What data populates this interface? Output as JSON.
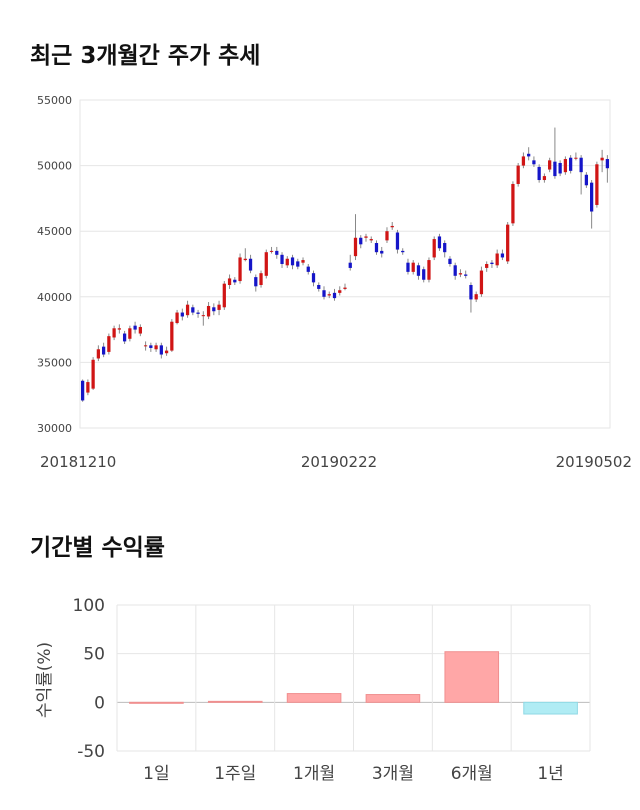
{
  "sections": {
    "price_title": "최근 3개월간 주가 추세",
    "return_title": "기간별 수익률"
  },
  "chart_data": [
    {
      "type": "candlestick",
      "title": "최근 3개월간 주가 추세",
      "ylim": [
        30000,
        55000
      ],
      "y_ticks": [
        "55000",
        "50000",
        "45000",
        "40000",
        "35000",
        "30000"
      ],
      "x_tick_labels": [
        "20181210",
        "20190222",
        "20190502"
      ],
      "colors": {
        "up": "#d01515",
        "down": "#1515c8",
        "wick": "#888888",
        "grid": "#e6e6e6"
      },
      "candles": [
        [
          33600,
          32100,
          33700,
          32000
        ],
        [
          32700,
          33500,
          33700,
          32500
        ],
        [
          33000,
          35200,
          35400,
          32900
        ],
        [
          35300,
          36000,
          36300,
          35100
        ],
        [
          36200,
          35600,
          36500,
          35400
        ],
        [
          35800,
          37000,
          37200,
          35600
        ],
        [
          36900,
          37600,
          37800,
          36700
        ],
        [
          37500,
          37600,
          37900,
          37200
        ],
        [
          37200,
          36600,
          37400,
          36400
        ],
        [
          36800,
          37600,
          37800,
          36600
        ],
        [
          37800,
          37500,
          38100,
          37200
        ],
        [
          37200,
          37700,
          37900,
          37000
        ],
        [
          36300,
          36300,
          36600,
          35900
        ],
        [
          36300,
          36100,
          36500,
          35800
        ],
        [
          36000,
          36300,
          36500,
          35800
        ],
        [
          36300,
          35600,
          36500,
          35300
        ],
        [
          35700,
          35900,
          36200,
          35500
        ],
        [
          35900,
          38100,
          38300,
          35800
        ],
        [
          38000,
          38800,
          39000,
          37900
        ],
        [
          38800,
          38500,
          39100,
          38200
        ],
        [
          38600,
          39400,
          39700,
          38400
        ],
        [
          39200,
          38800,
          39400,
          38600
        ],
        [
          38800,
          38700,
          39000,
          38400
        ],
        [
          38600,
          38600,
          38900,
          37800
        ],
        [
          38500,
          39300,
          39600,
          38300
        ],
        [
          39200,
          38900,
          39500,
          38600
        ],
        [
          39000,
          39400,
          39700,
          38600
        ],
        [
          39200,
          41000,
          41200,
          39000
        ],
        [
          40900,
          41400,
          41700,
          40600
        ],
        [
          41300,
          41100,
          41500,
          40900
        ],
        [
          41200,
          43000,
          43300,
          41000
        ],
        [
          42800,
          42900,
          43700,
          42700
        ],
        [
          42900,
          42000,
          43200,
          41800
        ],
        [
          41500,
          40800,
          41700,
          40400
        ],
        [
          40900,
          41800,
          42000,
          40700
        ],
        [
          41600,
          43400,
          43600,
          41400
        ],
        [
          43500,
          43500,
          43800,
          43300
        ],
        [
          43500,
          43200,
          43800,
          42900
        ],
        [
          43200,
          42500,
          43400,
          42200
        ],
        [
          42400,
          42900,
          43100,
          42200
        ],
        [
          43000,
          42400,
          43200,
          42100
        ],
        [
          42700,
          42300,
          42900,
          42100
        ],
        [
          42600,
          42800,
          43000,
          42400
        ],
        [
          42300,
          41900,
          42500,
          41700
        ],
        [
          41800,
          41100,
          42000,
          40800
        ],
        [
          40900,
          40600,
          41100,
          40400
        ],
        [
          40500,
          40000,
          40800,
          39800
        ],
        [
          40100,
          40200,
          40400,
          39900
        ],
        [
          40300,
          39900,
          40600,
          39700
        ],
        [
          40300,
          40500,
          40800,
          40100
        ],
        [
          40600,
          40700,
          41000,
          40500
        ],
        [
          42600,
          42200,
          43200,
          42000
        ],
        [
          43100,
          44500,
          46300,
          42800
        ],
        [
          44500,
          44000,
          44700,
          43700
        ],
        [
          44500,
          44600,
          44800,
          44200
        ],
        [
          44300,
          44400,
          44600,
          44100
        ],
        [
          44100,
          43400,
          44300,
          43200
        ],
        [
          43500,
          43300,
          43800,
          43000
        ],
        [
          44300,
          45000,
          45300,
          44100
        ],
        [
          45300,
          45400,
          45700,
          45100
        ],
        [
          44900,
          43600,
          45100,
          43300
        ],
        [
          43500,
          43400,
          43700,
          43200
        ],
        [
          42600,
          41900,
          42900,
          41700
        ],
        [
          41900,
          42600,
          42800,
          41700
        ],
        [
          42400,
          41600,
          42600,
          41300
        ],
        [
          42100,
          41300,
          42300,
          41100
        ],
        [
          41300,
          42800,
          43000,
          41100
        ],
        [
          43000,
          44400,
          44600,
          42800
        ],
        [
          44600,
          43700,
          44800,
          43500
        ],
        [
          44100,
          43400,
          44300,
          43000
        ],
        [
          42900,
          42500,
          43100,
          42300
        ],
        [
          42400,
          41600,
          42600,
          41300
        ],
        [
          41700,
          41800,
          42100,
          41500
        ],
        [
          41700,
          41600,
          42000,
          41400
        ],
        [
          40900,
          39800,
          41100,
          38800
        ],
        [
          39800,
          40200,
          40400,
          39600
        ],
        [
          40200,
          42000,
          42300,
          40000
        ],
        [
          42200,
          42500,
          42700,
          41900
        ],
        [
          42600,
          42500,
          42800,
          42200
        ],
        [
          42400,
          43300,
          43600,
          42200
        ],
        [
          43300,
          43000,
          43600,
          42800
        ],
        [
          42700,
          45500,
          45700,
          42500
        ],
        [
          45600,
          48600,
          48800,
          45400
        ],
        [
          48600,
          50000,
          50200,
          48400
        ],
        [
          50000,
          50700,
          51000,
          49800
        ],
        [
          50900,
          50700,
          51400,
          50400
        ],
        [
          50400,
          50100,
          50700,
          49900
        ],
        [
          49900,
          48900,
          50100,
          48700
        ],
        [
          48900,
          49200,
          49400,
          48700
        ],
        [
          49700,
          50400,
          50600,
          49500
        ],
        [
          50300,
          49200,
          52900,
          49000
        ],
        [
          50200,
          49400,
          50400,
          49200
        ],
        [
          49500,
          50500,
          50700,
          49300
        ],
        [
          50600,
          49600,
          50800,
          49400
        ],
        [
          50600,
          50600,
          51000,
          50400
        ],
        [
          50600,
          49500,
          50800,
          47800
        ],
        [
          49300,
          48500,
          49500,
          48300
        ],
        [
          48700,
          46500,
          48900,
          45200
        ],
        [
          47000,
          50100,
          50300,
          46800
        ],
        [
          50400,
          50600,
          51200,
          49500
        ],
        [
          50500,
          49800,
          50800,
          48700
        ]
      ]
    },
    {
      "type": "bar",
      "title": "기간별 수익률",
      "ylabel": "수익률(%)",
      "ylim": [
        -50,
        100
      ],
      "y_ticks": [
        "100",
        "50",
        "0",
        "-50"
      ],
      "categories": [
        "1일",
        "1주일",
        "1개월",
        "3개월",
        "6개월",
        "1년"
      ],
      "values": [
        0,
        1,
        9,
        8,
        52,
        -12
      ],
      "colors": {
        "positive": "#ffa7a7",
        "positive_edge": "#f08f8f",
        "negative": "#b0ecf4",
        "negative_edge": "#8fd8e4",
        "grid": "#e6e6e6"
      }
    }
  ]
}
